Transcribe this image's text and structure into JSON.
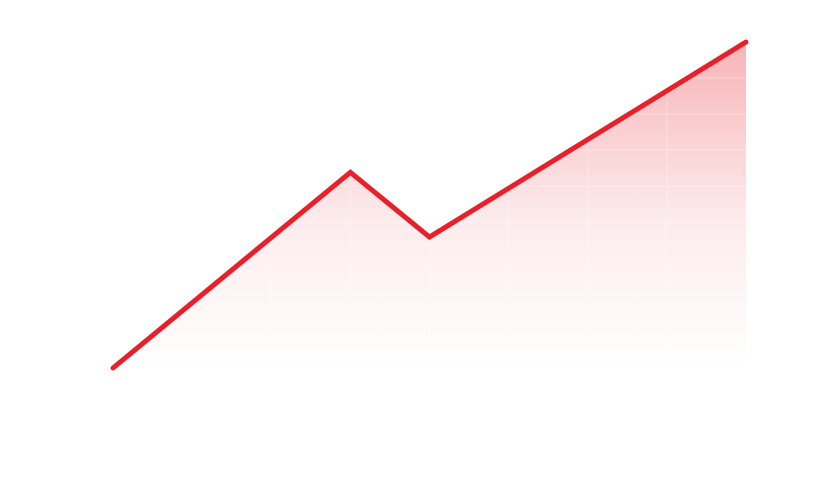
{
  "chart_data": {
    "type": "area",
    "x": [
      0,
      3,
      4,
      8
    ],
    "series": [
      {
        "values": [
          0,
          5.93,
          3.97,
          9.88
        ]
      }
    ],
    "xlim": [
      0,
      8
    ],
    "ylim": [
      0,
      9.88
    ],
    "grid": false,
    "legend": "none"
  },
  "colors": {
    "line": "#e8202a",
    "fill": "#f6a6aa",
    "grid": "#ffffff"
  }
}
